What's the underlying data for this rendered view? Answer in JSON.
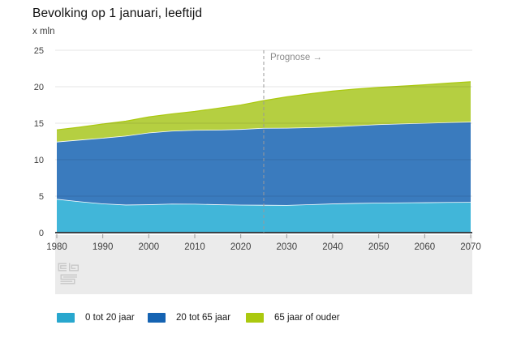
{
  "chart_data": {
    "type": "area",
    "stacked": true,
    "title": "Bevolking op 1 januari, leeftijd",
    "unit": "x mln",
    "x": [
      1980,
      1985,
      1990,
      1995,
      2000,
      2005,
      2010,
      2015,
      2020,
      2025,
      2030,
      2035,
      2040,
      2045,
      2050,
      2055,
      2060,
      2065,
      2070
    ],
    "series": [
      {
        "name": "0 tot 20 jaar",
        "fill": "#41B6D9",
        "line": "#28A7CE",
        "values": [
          4.62,
          4.28,
          3.99,
          3.83,
          3.87,
          3.96,
          3.95,
          3.87,
          3.82,
          3.8,
          3.78,
          3.88,
          3.98,
          4.05,
          4.1,
          4.13,
          4.15,
          4.18,
          4.2
        ]
      },
      {
        "name": "20 tot 65 jaar",
        "fill": "#3A7BBE",
        "line": "#1563B2",
        "values": [
          7.85,
          8.45,
          9.0,
          9.45,
          9.84,
          10.0,
          10.12,
          10.23,
          10.37,
          10.55,
          10.58,
          10.55,
          10.55,
          10.65,
          10.75,
          10.82,
          10.88,
          10.95,
          11.0
        ]
      },
      {
        "name": "65 jaar of ouder",
        "fill": "#B5CF41",
        "line": "#ABC90F",
        "values": [
          1.62,
          1.73,
          1.9,
          2.0,
          2.15,
          2.31,
          2.54,
          2.95,
          3.3,
          3.75,
          4.25,
          4.6,
          4.87,
          4.98,
          5.05,
          5.14,
          5.23,
          5.36,
          5.48
        ]
      }
    ],
    "ylim": [
      0,
      25
    ],
    "yticks": [
      0,
      5,
      10,
      15,
      20,
      25
    ],
    "xticks": [
      1980,
      1990,
      2000,
      2010,
      2020,
      2030,
      2040,
      2050,
      2060,
      2070
    ],
    "grid": true,
    "legend_position": "bottom",
    "annotation": {
      "label": "Prognose →",
      "year": 2025,
      "style": "dashed-vertical-line"
    }
  },
  "footer": {
    "logo_icon": "cbs-logo"
  },
  "colors": {
    "axis_line": "#3C4247",
    "grid_line_rgba": "rgba(0,0,0,0.10)",
    "axis_band_bg": "#EBEBEB",
    "tick_label": "#404040",
    "annotation_gray": "#8a8a8a",
    "boundary_line": "#FFFFFF"
  }
}
